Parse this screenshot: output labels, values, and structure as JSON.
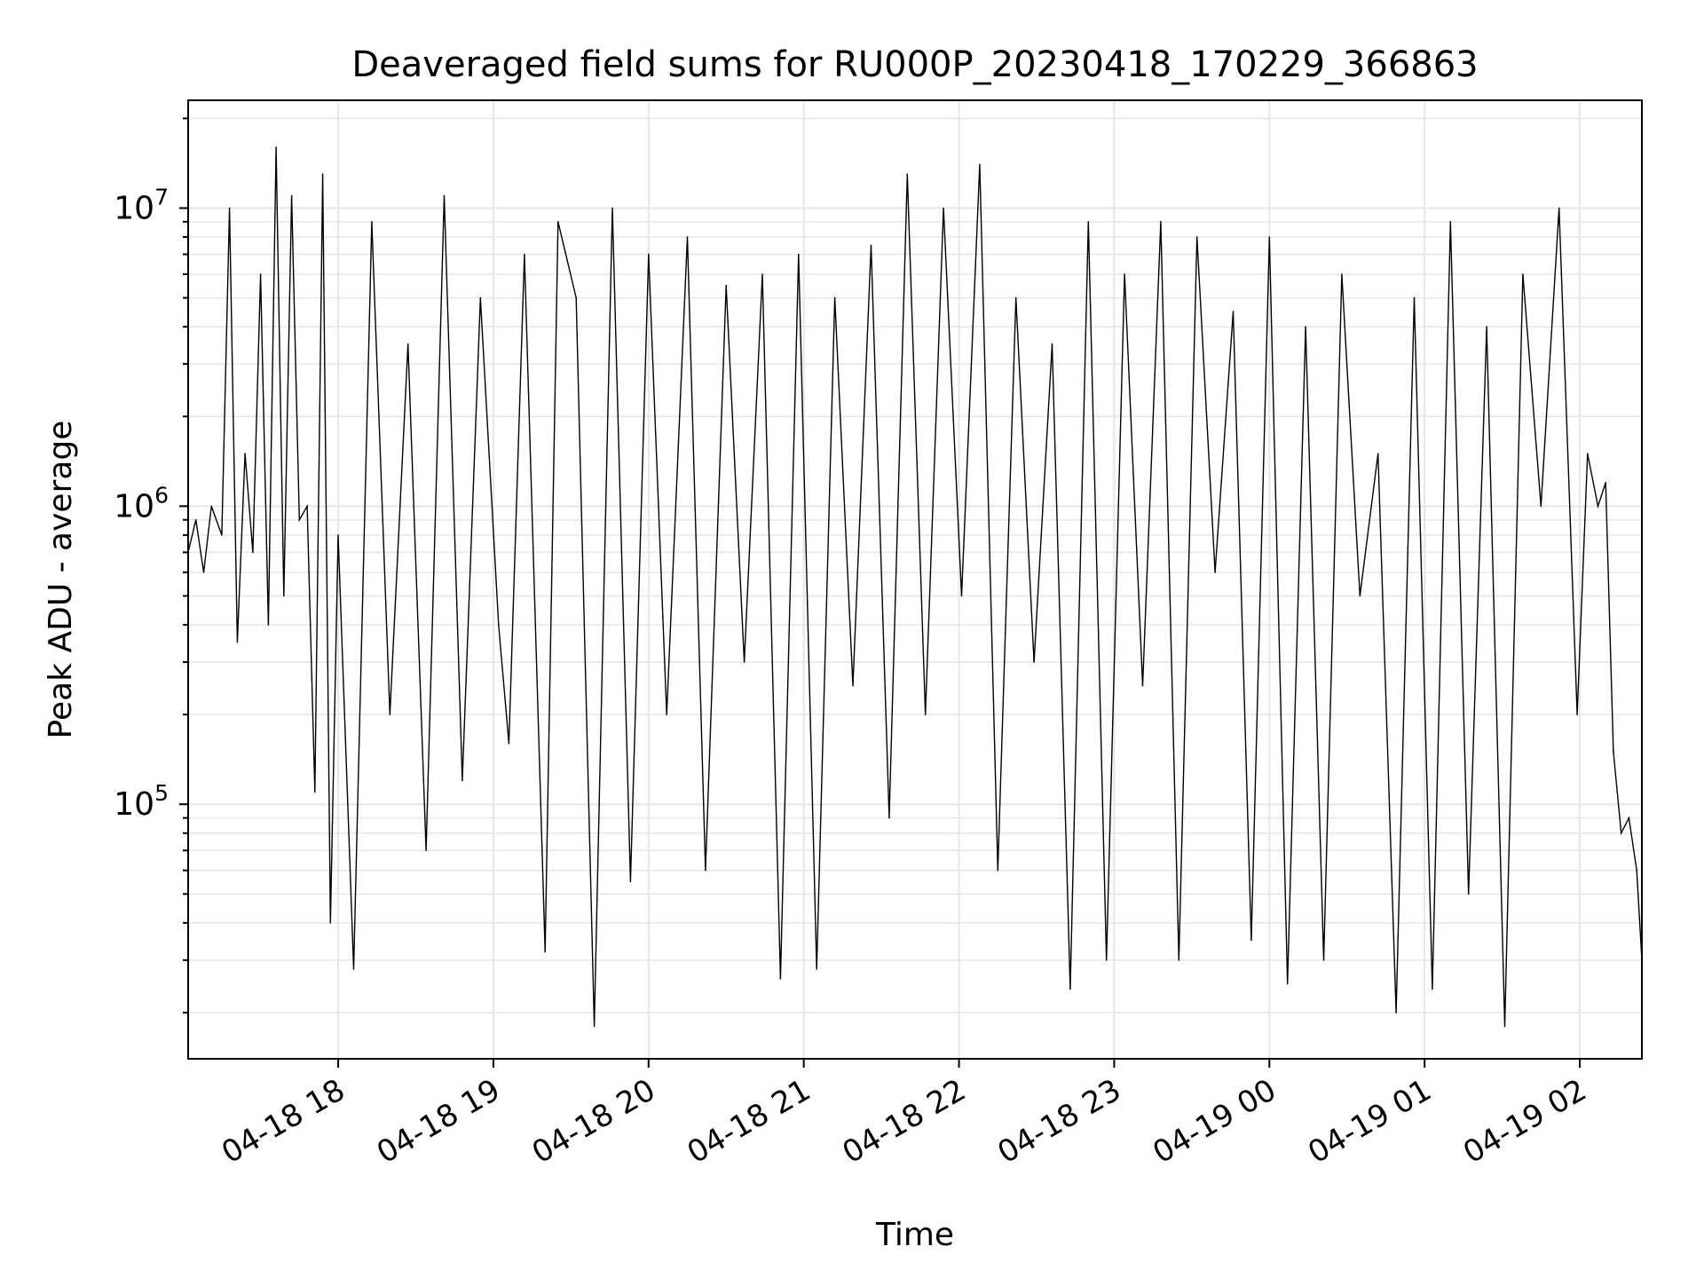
{
  "chart_data": {
    "type": "line",
    "title": "Deaveraged field sums for RU000P_20230418_170229_366863",
    "xlabel": "Time",
    "ylabel": "Peak ADU - average",
    "yscale": "log",
    "x_range": [
      "2023-04-18 17:02",
      "2023-04-19 02:24"
    ],
    "ylim": [
      14000,
      23000000
    ],
    "grid": true,
    "line_color": "#000000",
    "grid_color": "#e6e6e6",
    "x_ticks": [
      {
        "time": "2023-04-18 18:00",
        "label": "04-18 18"
      },
      {
        "time": "2023-04-18 19:00",
        "label": "04-18 19"
      },
      {
        "time": "2023-04-18 20:00",
        "label": "04-18 20"
      },
      {
        "time": "2023-04-18 21:00",
        "label": "04-18 21"
      },
      {
        "time": "2023-04-18 22:00",
        "label": "04-18 22"
      },
      {
        "time": "2023-04-18 23:00",
        "label": "04-18 23"
      },
      {
        "time": "2023-04-19 00:00",
        "label": "04-19 00"
      },
      {
        "time": "2023-04-19 01:00",
        "label": "04-19 01"
      },
      {
        "time": "2023-04-19 02:00",
        "label": "04-19 02"
      }
    ],
    "y_ticks": [
      {
        "value": 100000,
        "base": "10",
        "exp": "5"
      },
      {
        "value": 1000000,
        "base": "10",
        "exp": "6"
      },
      {
        "value": 10000000,
        "base": "10",
        "exp": "7"
      }
    ],
    "series": [
      {
        "x": [
          "2023-04-18 17:02",
          "2023-04-18 17:05",
          "2023-04-18 17:08",
          "2023-04-18 17:11",
          "2023-04-18 17:15",
          "2023-04-18 17:18",
          "2023-04-18 17:21",
          "2023-04-18 17:24",
          "2023-04-18 17:27",
          "2023-04-18 17:30",
          "2023-04-18 17:33",
          "2023-04-18 17:36",
          "2023-04-18 17:39",
          "2023-04-18 17:42",
          "2023-04-18 17:45",
          "2023-04-18 17:48",
          "2023-04-18 17:51",
          "2023-04-18 17:54",
          "2023-04-18 17:57",
          "2023-04-18 18:00",
          "2023-04-18 18:06",
          "2023-04-18 18:13",
          "2023-04-18 18:20",
          "2023-04-18 18:27",
          "2023-04-18 18:34",
          "2023-04-18 18:41",
          "2023-04-18 18:48",
          "2023-04-18 18:55",
          "2023-04-18 19:02",
          "2023-04-18 19:06",
          "2023-04-18 19:12",
          "2023-04-18 19:20",
          "2023-04-18 19:25",
          "2023-04-18 19:32",
          "2023-04-18 19:39",
          "2023-04-18 19:46",
          "2023-04-18 19:53",
          "2023-04-18 20:00",
          "2023-04-18 20:07",
          "2023-04-18 20:15",
          "2023-04-18 20:22",
          "2023-04-18 20:30",
          "2023-04-18 20:37",
          "2023-04-18 20:44",
          "2023-04-18 20:51",
          "2023-04-18 20:58",
          "2023-04-18 21:05",
          "2023-04-18 21:12",
          "2023-04-18 21:19",
          "2023-04-18 21:26",
          "2023-04-18 21:33",
          "2023-04-18 21:40",
          "2023-04-18 21:47",
          "2023-04-18 21:54",
          "2023-04-18 22:01",
          "2023-04-18 22:08",
          "2023-04-18 22:15",
          "2023-04-18 22:22",
          "2023-04-18 22:29",
          "2023-04-18 22:36",
          "2023-04-18 22:43",
          "2023-04-18 22:50",
          "2023-04-18 22:57",
          "2023-04-18 23:04",
          "2023-04-18 23:11",
          "2023-04-18 23:18",
          "2023-04-18 23:25",
          "2023-04-18 23:32",
          "2023-04-18 23:39",
          "2023-04-18 23:46",
          "2023-04-18 23:53",
          "2023-04-19 00:00",
          "2023-04-19 00:07",
          "2023-04-19 00:14",
          "2023-04-19 00:21",
          "2023-04-19 00:28",
          "2023-04-19 00:35",
          "2023-04-19 00:42",
          "2023-04-19 00:49",
          "2023-04-19 00:56",
          "2023-04-19 01:03",
          "2023-04-19 01:10",
          "2023-04-19 01:17",
          "2023-04-19 01:24",
          "2023-04-19 01:31",
          "2023-04-19 01:38",
          "2023-04-19 01:45",
          "2023-04-19 01:52",
          "2023-04-19 01:59",
          "2023-04-19 02:03",
          "2023-04-19 02:07",
          "2023-04-19 02:10",
          "2023-04-19 02:13",
          "2023-04-19 02:16",
          "2023-04-19 02:19",
          "2023-04-19 02:22",
          "2023-04-19 02:24"
        ],
        "y": [
          700000,
          900000,
          600000,
          1000000,
          800000,
          10000000,
          350000,
          1500000,
          700000,
          6000000,
          400000,
          16000000,
          500000,
          11000000,
          900000,
          1000000,
          110000,
          13000000,
          40000,
          800000,
          28000,
          9000000,
          200000,
          3500000,
          70000,
          11000000,
          120000,
          5000000,
          400000,
          160000,
          7000000,
          32000,
          9000000,
          5000000,
          18000,
          10000000,
          55000,
          7000000,
          200000,
          8000000,
          60000,
          5500000,
          300000,
          6000000,
          26000,
          7000000,
          28000,
          5000000,
          250000,
          7500000,
          90000,
          13000000,
          200000,
          10000000,
          500000,
          14000000,
          60000,
          5000000,
          300000,
          3500000,
          24000,
          9000000,
          30000,
          6000000,
          250000,
          9000000,
          30000,
          8000000,
          600000,
          4500000,
          35000,
          8000000,
          25000,
          4000000,
          30000,
          6000000,
          500000,
          1500000,
          20000,
          5000000,
          24000,
          9000000,
          50000,
          4000000,
          18000,
          6000000,
          1000000,
          10000000,
          200000,
          1500000,
          1000000,
          1200000,
          150000,
          80000,
          90000,
          60000,
          30000
        ]
      }
    ]
  }
}
